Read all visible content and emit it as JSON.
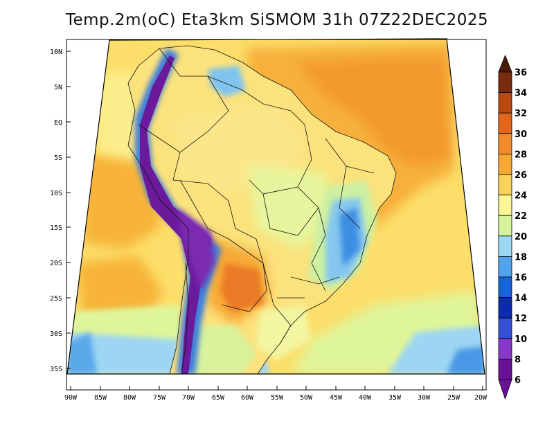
{
  "map": {
    "title": "Temp.2m(oC) Eta3km SiSMOM 31h 07Z22DEC2025",
    "variable": "Temp.2m",
    "units": "oC",
    "model": "Eta3km SiSMOM",
    "forecast_hour": "31h",
    "valid_time": "07Z22DEC2025",
    "lat_labels": [
      "10N",
      "5N",
      "EQ",
      "5S",
      "10S",
      "15S",
      "20S",
      "25S",
      "30S",
      "35S"
    ],
    "lon_labels": [
      "90W",
      "85W",
      "80W",
      "75W",
      "70W",
      "65W",
      "60W",
      "55W",
      "50W",
      "45W",
      "40W",
      "35W",
      "30W",
      "25W",
      "20W"
    ],
    "colorbar": {
      "levels": [
        "36",
        "34",
        "32",
        "30",
        "28",
        "26",
        "24",
        "22",
        "20",
        "18",
        "16",
        "14",
        "12",
        "10",
        "8",
        "6"
      ],
      "colors": [
        "#4a1a08",
        "#7a2c0e",
        "#b84a10",
        "#e2651c",
        "#f18a2b",
        "#f7a834",
        "#fad25a",
        "#fbf596",
        "#d6f59a",
        "#9bd8f5",
        "#4fa4ec",
        "#1565d8",
        "#0c2cb0",
        "#3550d6",
        "#8a38c8",
        "#6a1296"
      ]
    },
    "palette": {
      "ocean_warm": "#fbc73f",
      "ocean_orange": "#f5a532",
      "ocean_cool": "#fcee86",
      "land_base": "#fbe27a",
      "andes": "#6a1a9a",
      "border": "#000000"
    }
  }
}
